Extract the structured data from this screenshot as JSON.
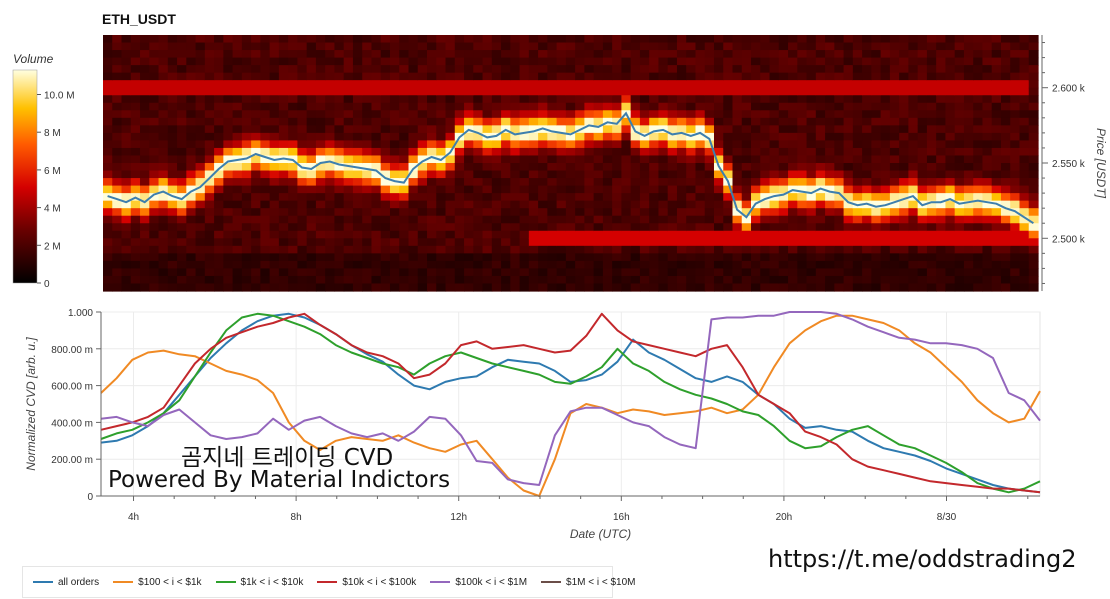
{
  "title": "ETH_USDT",
  "colorbar": {
    "title": "Volume",
    "ticks": [
      "0",
      "2 M",
      "4 M",
      "6 M",
      "8 M",
      "10.0 M"
    ],
    "tick_values": [
      0,
      2,
      4,
      6,
      8,
      10
    ]
  },
  "watermark_line1": "곰지네 트레이딩 CVD",
  "watermark_line2": "Powered By Material Indictors",
  "link_text": "https://t.me/oddstrading2",
  "colors": {
    "all_orders": "#2e7ab0",
    "s100_1k": "#f08a24",
    "s1k_10k": "#2ea02c",
    "s10k_100k": "#c3282c",
    "s100k_1m": "#9467bd",
    "s1m_10m": "#6b4e48"
  },
  "chart_data": [
    {
      "type": "heatmap",
      "title": "ETH_USDT",
      "ylabel": "Price [USDT]",
      "y_ticks": [
        "2.500 k",
        "2.550 k",
        "2.600 k"
      ],
      "y_tick_values": [
        2500,
        2550,
        2600
      ],
      "ylim": [
        2465,
        2635
      ],
      "price_line": [
        2528,
        2526,
        2524,
        2527,
        2524,
        2529,
        2531,
        2528,
        2526,
        2531,
        2534,
        2540,
        2546,
        2551,
        2552,
        2553,
        2556,
        2554,
        2552,
        2553,
        2552,
        2547,
        2546,
        2550,
        2551,
        2549,
        2548,
        2547,
        2546,
        2545,
        2540,
        2538,
        2537,
        2546,
        2551,
        2554,
        2552,
        2557,
        2567,
        2572,
        2570,
        2567,
        2568,
        2572,
        2569,
        2570,
        2571,
        2573,
        2571,
        2570,
        2569,
        2572,
        2575,
        2574,
        2577,
        2576,
        2583,
        2571,
        2568,
        2571,
        2572,
        2569,
        2570,
        2568,
        2570,
        2566,
        2548,
        2538,
        2519,
        2514,
        2523,
        2526,
        2528,
        2529,
        2532,
        2531,
        2530,
        2533,
        2531,
        2530,
        2524,
        2522,
        2523,
        2521,
        2522,
        2524,
        2526,
        2528,
        2522,
        2524,
        2524,
        2526,
        2523,
        2524,
        2525,
        2524,
        2523,
        2520,
        2518,
        2514,
        2510
      ]
    },
    {
      "type": "line",
      "xlabel": "Date (UTC)",
      "ylabel": "Normalized CVD [arb. u.]",
      "x_ticks": [
        "4h",
        "8h",
        "12h",
        "16h",
        "20h",
        "8/30"
      ],
      "x_tick_values": [
        4,
        8,
        12,
        16,
        20,
        24
      ],
      "xlim": [
        3.2,
        26.3
      ],
      "y_ticks": [
        "0",
        "200.00 m",
        "400.00 m",
        "600.00 m",
        "800.00 m",
        "1.000"
      ],
      "y_tick_values": [
        0,
        0.2,
        0.4,
        0.6,
        0.8,
        1.0
      ],
      "ylim": [
        0,
        1.0
      ],
      "legend_position": "bottom",
      "series": [
        {
          "name": "all orders",
          "key": "all_orders",
          "values": [
            0.29,
            0.3,
            0.33,
            0.38,
            0.45,
            0.55,
            0.65,
            0.75,
            0.83,
            0.9,
            0.95,
            0.98,
            0.99,
            0.97,
            0.93,
            0.88,
            0.82,
            0.77,
            0.73,
            0.66,
            0.6,
            0.58,
            0.62,
            0.64,
            0.65,
            0.7,
            0.74,
            0.73,
            0.72,
            0.68,
            0.62,
            0.63,
            0.66,
            0.73,
            0.85,
            0.78,
            0.74,
            0.69,
            0.64,
            0.62,
            0.65,
            0.62,
            0.55,
            0.5,
            0.42,
            0.37,
            0.38,
            0.36,
            0.35,
            0.3,
            0.26,
            0.24,
            0.22,
            0.19,
            0.15,
            0.12,
            0.09,
            0.06,
            0.04,
            0.03,
            0.02
          ]
        },
        {
          "name": "$100 < i < $1k",
          "key": "s100_1k",
          "values": [
            0.56,
            0.64,
            0.74,
            0.78,
            0.79,
            0.77,
            0.76,
            0.72,
            0.68,
            0.66,
            0.63,
            0.56,
            0.4,
            0.3,
            0.25,
            0.3,
            0.32,
            0.31,
            0.3,
            0.33,
            0.29,
            0.26,
            0.24,
            0.28,
            0.3,
            0.2,
            0.1,
            0.03,
            0.0,
            0.2,
            0.45,
            0.5,
            0.48,
            0.45,
            0.47,
            0.46,
            0.44,
            0.45,
            0.46,
            0.48,
            0.45,
            0.47,
            0.55,
            0.7,
            0.83,
            0.9,
            0.95,
            0.98,
            0.98,
            0.96,
            0.94,
            0.9,
            0.83,
            0.78,
            0.7,
            0.62,
            0.52,
            0.45,
            0.4,
            0.42,
            0.57
          ]
        },
        {
          "name": "$1k < i < $10k",
          "key": "s1k_10k",
          "values": [
            0.31,
            0.34,
            0.36,
            0.4,
            0.45,
            0.52,
            0.65,
            0.78,
            0.9,
            0.97,
            0.99,
            0.98,
            0.95,
            0.92,
            0.88,
            0.82,
            0.78,
            0.75,
            0.72,
            0.7,
            0.66,
            0.72,
            0.76,
            0.78,
            0.75,
            0.72,
            0.7,
            0.68,
            0.66,
            0.62,
            0.61,
            0.65,
            0.7,
            0.8,
            0.72,
            0.68,
            0.62,
            0.58,
            0.55,
            0.53,
            0.5,
            0.46,
            0.44,
            0.38,
            0.3,
            0.26,
            0.27,
            0.32,
            0.36,
            0.38,
            0.33,
            0.28,
            0.26,
            0.22,
            0.18,
            0.13,
            0.07,
            0.04,
            0.02,
            0.04,
            0.08
          ]
        },
        {
          "name": "$10k < i < $100k",
          "key": "s10k_100k",
          "values": [
            0.36,
            0.38,
            0.4,
            0.43,
            0.48,
            0.6,
            0.72,
            0.8,
            0.86,
            0.89,
            0.92,
            0.94,
            0.97,
            0.99,
            0.93,
            0.88,
            0.82,
            0.78,
            0.76,
            0.72,
            0.64,
            0.66,
            0.72,
            0.82,
            0.84,
            0.8,
            0.81,
            0.82,
            0.8,
            0.78,
            0.79,
            0.87,
            0.99,
            0.9,
            0.84,
            0.82,
            0.8,
            0.78,
            0.76,
            0.8,
            0.82,
            0.7,
            0.55,
            0.5,
            0.45,
            0.35,
            0.32,
            0.28,
            0.2,
            0.16,
            0.14,
            0.12,
            0.1,
            0.08,
            0.07,
            0.06,
            0.05,
            0.04,
            0.04,
            0.03,
            0.02
          ]
        },
        {
          "name": "$100k < i < $1M",
          "key": "s100k_1m",
          "values": [
            0.42,
            0.43,
            0.4,
            0.38,
            0.44,
            0.47,
            0.4,
            0.33,
            0.31,
            0.32,
            0.34,
            0.42,
            0.36,
            0.41,
            0.43,
            0.38,
            0.34,
            0.32,
            0.34,
            0.3,
            0.35,
            0.43,
            0.42,
            0.33,
            0.19,
            0.18,
            0.09,
            0.07,
            0.06,
            0.33,
            0.46,
            0.48,
            0.48,
            0.44,
            0.4,
            0.38,
            0.32,
            0.28,
            0.26,
            0.96,
            0.97,
            0.97,
            0.98,
            0.98,
            1.0,
            1.0,
            1.0,
            0.99,
            0.96,
            0.92,
            0.89,
            0.86,
            0.85,
            0.83,
            0.83,
            0.82,
            0.8,
            0.75,
            0.56,
            0.52,
            0.41
          ]
        },
        {
          "name": "$1M < i < $10M",
          "key": "s1m_10m",
          "values": []
        }
      ]
    }
  ]
}
